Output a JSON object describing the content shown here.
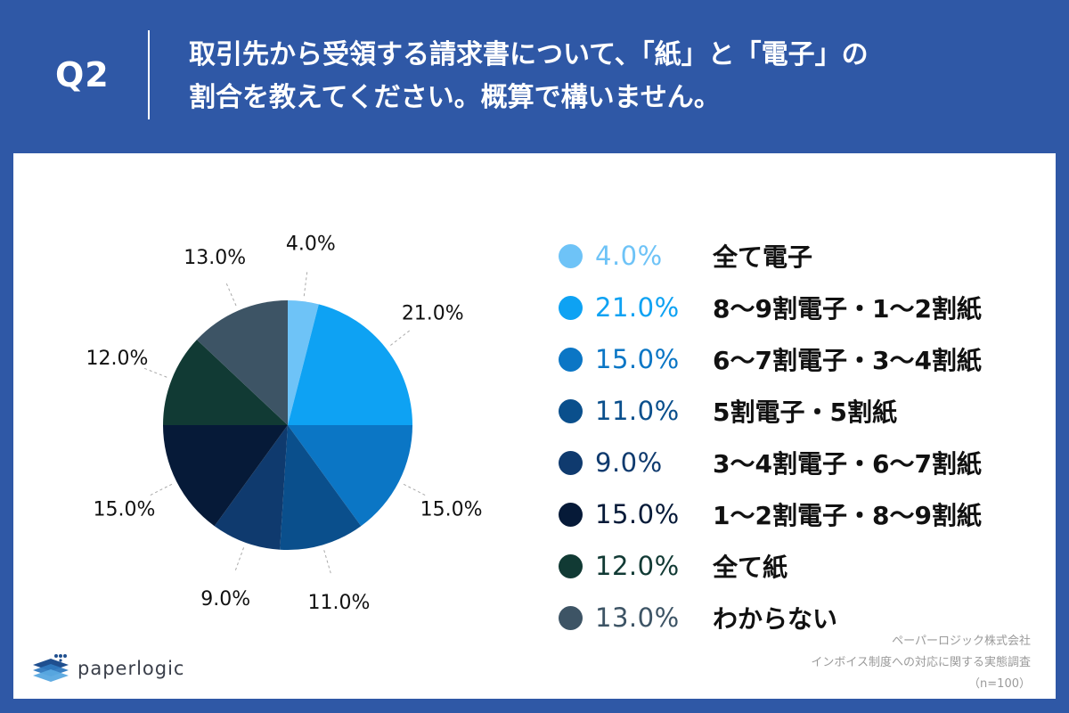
{
  "header": {
    "question_number": "Q2",
    "question_text": "取引先から受領する請求書について、「紙」と「電子」の\n割合を教えてください。概算で構いません。"
  },
  "brand": {
    "name": "paperlogic"
  },
  "source": {
    "company": "ペーパーロジック株式会社",
    "survey": "インボイス制度への対応に関する実態調査",
    "sample": "（n=100）"
  },
  "colors": {
    "header_bg": "#2f58a6",
    "card_bg": "#ffffff"
  },
  "chart_data": {
    "type": "pie",
    "start": "12 o'clock",
    "direction": "clockwise",
    "categories": [
      "全て電子",
      "8〜9割電子・1〜2割紙",
      "6〜7割電子・3〜4割紙",
      "5割電子・5割紙",
      "3〜4割電子・6〜7割紙",
      "1〜2割電子・8〜9割紙",
      "全て紙",
      "わからない"
    ],
    "values": [
      4.0,
      21.0,
      15.0,
      11.0,
      9.0,
      15.0,
      12.0,
      13.0
    ],
    "labels": [
      "4.0%",
      "21.0%",
      "15.0%",
      "11.0%",
      "9.0%",
      "15.0%",
      "12.0%",
      "13.0%"
    ],
    "colors": [
      "#6ec3f7",
      "#0ea2f3",
      "#0b76c5",
      "#0a4f8c",
      "#0f3a6e",
      "#061a38",
      "#113a34",
      "#3d5465"
    ],
    "legend_placement": "right"
  }
}
